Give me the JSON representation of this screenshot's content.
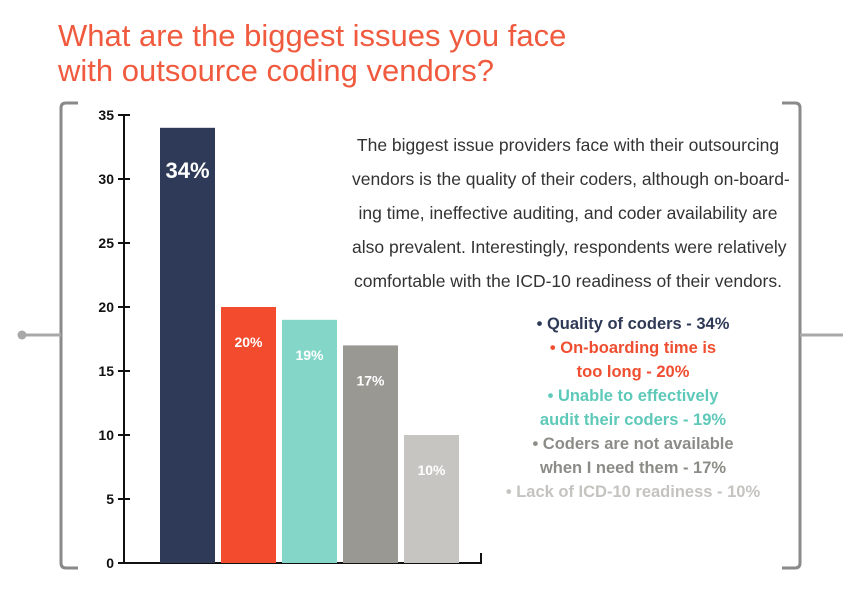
{
  "title_lines": [
    "What are the biggest issues you face",
    "with outsource coding vendors?"
  ],
  "description_lines": [
    "The biggest issue providers face with their outsourcing",
    "vendors is the quality of their coders, although on-board-",
    "ing time, ineffective auditing, and coder availability are",
    "also prevalent. Interestingly, respondents were relatively",
    "comfortable with the ICD-10 readiness of their vendors."
  ],
  "legend": [
    {
      "lines": [
        "• Quality of coders - 34%"
      ],
      "color": "#2f3a56"
    },
    {
      "lines": [
        "• On-boarding time is",
        "too long - 20%"
      ],
      "color": "#f04e30"
    },
    {
      "lines": [
        "• Unable to effectively",
        "audit their coders - 19%"
      ],
      "color": "#5ec9b9"
    },
    {
      "lines": [
        "• Coders are not available",
        "when I need them - 17%"
      ],
      "color": "#8c8c87"
    },
    {
      "lines": [
        "• Lack of ICD-10 readiness - 10%"
      ],
      "color": "#c4c3bf"
    }
  ],
  "chart_data": {
    "type": "bar",
    "values": [
      34,
      20,
      19,
      17,
      10
    ],
    "labels": [
      "34%",
      "20%",
      "19%",
      "17%",
      "10%"
    ],
    "colors": [
      "#2e3a57",
      "#f24b2e",
      "#84d6c8",
      "#9a9893",
      "#c6c5c1"
    ],
    "yticks": [
      "0",
      "5",
      "10",
      "15",
      "20",
      "25",
      "30",
      "35"
    ],
    "ylim": [
      0,
      35
    ]
  }
}
